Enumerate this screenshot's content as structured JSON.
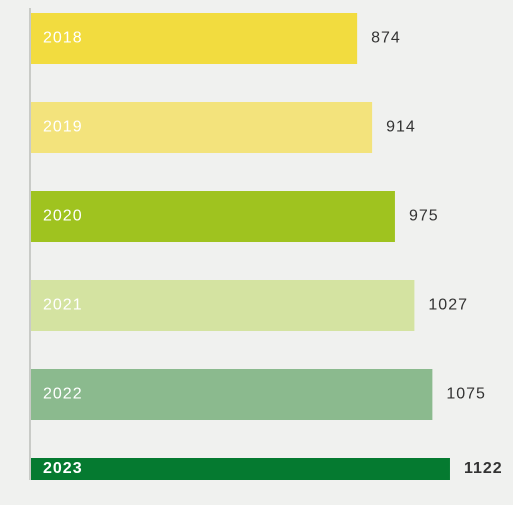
{
  "chart_data": {
    "type": "hbar",
    "categories": [
      "2018",
      "2019",
      "2020",
      "2021",
      "2022",
      "2023"
    ],
    "values": [
      874,
      914,
      975,
      1027,
      1075,
      1122
    ],
    "colors": [
      "#f2dc3f",
      "#f3e37c",
      "#9fc31f",
      "#d4e3a1",
      "#8bba8e",
      "#057a30"
    ]
  }
}
